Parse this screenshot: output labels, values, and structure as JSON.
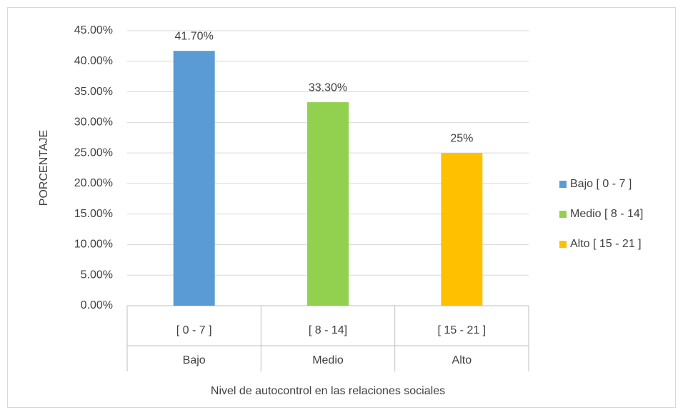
{
  "chart_data": {
    "type": "bar",
    "x_label": "Nivel de autocontrol en las relaciones sociales",
    "y_label": "PORCENTAJE",
    "categories": [
      "Bajo",
      "Medio",
      "Alto"
    ],
    "subcategories": [
      "[ 0  - 7  ]",
      "[ 8 - 14]",
      "[ 15 - 21 ]"
    ],
    "series": [
      {
        "name": "Bajo [ 0  - 7  ]",
        "color": "#5b9bd5",
        "values": [
          41.7,
          null,
          null
        ],
        "value_labels": [
          "41.70%",
          null,
          null
        ]
      },
      {
        "name": "Medio [ 8 - 14]",
        "color": "#92d050",
        "values": [
          null,
          33.3,
          null
        ],
        "value_labels": [
          null,
          "33.30%",
          null
        ]
      },
      {
        "name": "Alto [ 15 - 21 ]",
        "color": "#ffc000",
        "values": [
          null,
          null,
          25
        ],
        "value_labels": [
          null,
          null,
          "25%"
        ]
      }
    ],
    "ylim": [
      0,
      45
    ],
    "yticks": [
      {
        "value": 0,
        "label": "0.00%"
      },
      {
        "value": 5,
        "label": "5.00%"
      },
      {
        "value": 10,
        "label": "10.00%"
      },
      {
        "value": 15,
        "label": "15.00%"
      },
      {
        "value": 20,
        "label": "20.00%"
      },
      {
        "value": 25,
        "label": "25.00%"
      },
      {
        "value": 30,
        "label": "30.00%"
      },
      {
        "value": 35,
        "label": "35.00%"
      },
      {
        "value": 40,
        "label": "40.00%"
      },
      {
        "value": 45,
        "label": "45.00%"
      }
    ],
    "grid": true,
    "legend": "right"
  }
}
